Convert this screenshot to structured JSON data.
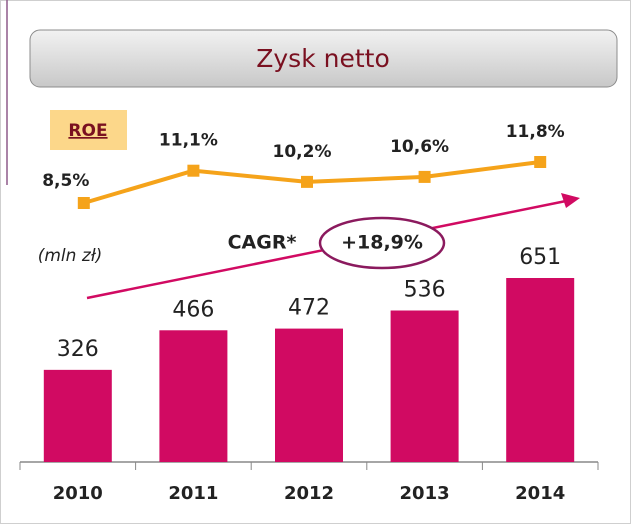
{
  "chart_data": {
    "type": "bar",
    "title": "Zysk netto",
    "unit_label": "(mln zł)",
    "categories": [
      "2010",
      "2011",
      "2012",
      "2013",
      "2014"
    ],
    "values": [
      326,
      466,
      472,
      536,
      651
    ],
    "color": "#d10a62",
    "line": {
      "name": "ROE",
      "values": [
        8.5,
        11.1,
        10.2,
        10.6,
        11.8
      ],
      "value_labels": [
        "8,5%",
        "11,1%",
        "10,2%",
        "10,6%",
        "11,8%"
      ],
      "color": "#f5a31a"
    },
    "annotations": [
      "CAGR*",
      "+18,9%"
    ]
  }
}
